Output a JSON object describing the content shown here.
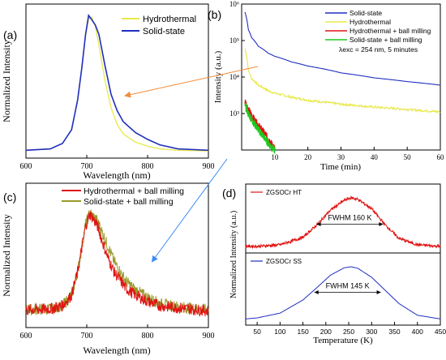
{
  "chart_data": [
    {
      "panel": "(a)",
      "type": "line",
      "xlabel": "Wavelength (nm)",
      "ylabel": "Normalized Intensity",
      "xlim": [
        600,
        900
      ],
      "xticks": [
        600,
        700,
        800,
        900
      ],
      "legend_position": "top-right",
      "series": [
        {
          "name": "Hydrothermal",
          "color": "#e8e84a",
          "x": [
            600,
            640,
            660,
            675,
            685,
            692,
            698,
            703,
            708,
            714,
            720,
            730,
            740,
            750,
            760,
            780,
            800,
            820,
            850,
            900
          ],
          "y": [
            0.01,
            0.02,
            0.06,
            0.16,
            0.38,
            0.62,
            0.85,
            0.97,
            0.99,
            0.92,
            0.78,
            0.52,
            0.32,
            0.2,
            0.13,
            0.07,
            0.04,
            0.02,
            0.01,
            0.005
          ]
        },
        {
          "name": "Solid-state",
          "color": "#1f2fbf",
          "x": [
            600,
            640,
            660,
            675,
            685,
            692,
            698,
            703,
            708,
            714,
            720,
            730,
            740,
            750,
            760,
            780,
            800,
            820,
            850,
            900
          ],
          "y": [
            0.01,
            0.02,
            0.06,
            0.16,
            0.38,
            0.62,
            0.86,
            1.0,
            0.97,
            0.93,
            0.86,
            0.63,
            0.42,
            0.3,
            0.22,
            0.14,
            0.09,
            0.05,
            0.02,
            0.01
          ]
        }
      ]
    },
    {
      "panel": "(b)",
      "type": "line",
      "xlabel": "Time (min)",
      "ylabel": "Intensity (a.u.)",
      "xlim": [
        0,
        60
      ],
      "ylim": [
        100,
        1000000
      ],
      "yscale": "log",
      "xticks": [
        10,
        20,
        30,
        40,
        50,
        60
      ],
      "yticks": [
        "10³",
        "10⁴",
        "10⁵",
        "10⁶"
      ],
      "legend_position": "top-right",
      "annotation": "λexc = 254 nm, 5 minutes",
      "series": [
        {
          "name": "Solid-state",
          "color": "#1f2fbf",
          "x": [
            1,
            2,
            3,
            5,
            8,
            10,
            15,
            20,
            30,
            40,
            50,
            60
          ],
          "y": [
            600000,
            200000,
            120000,
            70000,
            45000,
            37000,
            26000,
            20000,
            13000,
            9500,
            7500,
            6000
          ]
        },
        {
          "name": "Hydrothermal",
          "color": "#e8e84a",
          "x": [
            1,
            2,
            3,
            5,
            8,
            10,
            15,
            20,
            30,
            40,
            50,
            60
          ],
          "y": [
            60000,
            15000,
            9000,
            6000,
            4200,
            3600,
            2800,
            2300,
            1800,
            1500,
            1300,
            1100
          ]
        },
        {
          "name": "Hydrothermal + ball milling",
          "color": "#e01414",
          "x": [
            1,
            2,
            3,
            4,
            5,
            6,
            7,
            8,
            9,
            10
          ],
          "y": [
            2200,
            1300,
            900,
            650,
            480,
            370,
            280,
            210,
            150,
            110
          ]
        },
        {
          "name": "Solid-state + ball milling",
          "color": "#1ec81e",
          "x": [
            1,
            2,
            3,
            4,
            5,
            6,
            7,
            8,
            9,
            10
          ],
          "y": [
            1700,
            1000,
            700,
            500,
            370,
            280,
            210,
            160,
            120,
            100
          ]
        }
      ]
    },
    {
      "panel": "(c)",
      "type": "line",
      "xlabel": "Wavelength (nm)",
      "ylabel": "Normalized Intensity",
      "xlim": [
        600,
        900
      ],
      "xticks": [
        600,
        700,
        800,
        900
      ],
      "legend_position": "top-right",
      "series": [
        {
          "name": "Hydrothermal + ball milling",
          "color": "#e01414",
          "x": [
            600,
            640,
            660,
            675,
            685,
            692,
            698,
            705,
            710,
            718,
            725,
            735,
            745,
            755,
            765,
            780,
            800,
            820,
            850,
            900
          ],
          "y": [
            0.06,
            0.07,
            0.1,
            0.2,
            0.42,
            0.65,
            0.85,
            0.97,
            0.93,
            0.85,
            0.72,
            0.55,
            0.42,
            0.34,
            0.26,
            0.2,
            0.14,
            0.1,
            0.08,
            0.05
          ]
        },
        {
          "name": "Solid-state + ball milling",
          "color": "#9a9a2a",
          "x": [
            600,
            640,
            660,
            675,
            685,
            692,
            698,
            705,
            710,
            718,
            725,
            735,
            745,
            755,
            765,
            780,
            800,
            820,
            850,
            900
          ],
          "y": [
            0.06,
            0.07,
            0.1,
            0.2,
            0.42,
            0.66,
            0.87,
            0.98,
            0.95,
            0.9,
            0.8,
            0.66,
            0.52,
            0.42,
            0.33,
            0.25,
            0.18,
            0.12,
            0.09,
            0.06
          ]
        }
      ]
    },
    {
      "panel": "(d)",
      "type": "line",
      "xlabel": "Temperature (K)",
      "ylabel": "Normalized Intensity (a.u.)",
      "xlim": [
        25,
        450
      ],
      "xticks": [
        50,
        100,
        150,
        200,
        250,
        300,
        350,
        400,
        450
      ],
      "subplots": [
        {
          "label": "ZGSOCr HT",
          "annotation": "FWHM 160 K",
          "color": "#e01414",
          "x": [
            25,
            50,
            100,
            150,
            180,
            210,
            240,
            255,
            270,
            300,
            330,
            360,
            400,
            450
          ],
          "y": [
            0.02,
            0.02,
            0.05,
            0.2,
            0.45,
            0.75,
            0.95,
            1.0,
            0.97,
            0.78,
            0.45,
            0.18,
            0.05,
            0.02
          ]
        },
        {
          "label": "ZGSOCr SS",
          "annotation": "FWHM 145 K",
          "color": "#1f2fbf",
          "x": [
            25,
            50,
            100,
            150,
            180,
            210,
            240,
            255,
            270,
            300,
            330,
            360,
            400,
            450
          ],
          "y": [
            0.01,
            0.03,
            0.12,
            0.37,
            0.6,
            0.84,
            0.98,
            1.0,
            0.97,
            0.8,
            0.55,
            0.3,
            0.08,
            0.01
          ]
        }
      ]
    }
  ]
}
